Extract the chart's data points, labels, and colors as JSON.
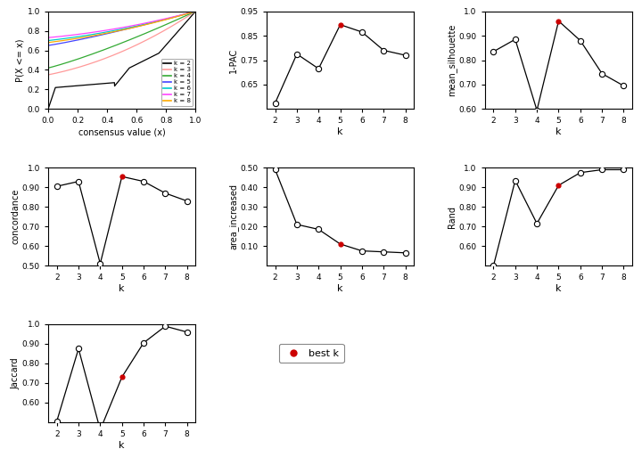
{
  "k_values": [
    2,
    3,
    4,
    5,
    6,
    7,
    8
  ],
  "best_k": 5,
  "best_k_idx": 3,
  "pac_1minus": [
    0.575,
    0.775,
    0.715,
    0.895,
    0.865,
    0.79,
    0.77
  ],
  "pac_ylim": [
    0.55,
    0.95
  ],
  "pac_yticks": [
    0.65,
    0.75,
    0.85,
    0.95
  ],
  "mean_silhouette": [
    0.835,
    0.885,
    0.595,
    0.96,
    0.88,
    0.745,
    0.695
  ],
  "silh_ylim": [
    0.6,
    1.0
  ],
  "silh_yticks": [
    0.6,
    0.7,
    0.8,
    0.9,
    1.0
  ],
  "concordance": [
    0.905,
    0.93,
    0.51,
    0.955,
    0.93,
    0.87,
    0.83
  ],
  "conc_ylim": [
    0.5,
    1.0
  ],
  "conc_yticks": [
    0.5,
    0.6,
    0.7,
    0.8,
    0.9,
    1.0
  ],
  "area_increased": [
    0.49,
    0.21,
    0.185,
    0.11,
    0.075,
    0.07,
    0.065
  ],
  "area_ylim": [
    0.0,
    0.5
  ],
  "area_yticks": [
    0.1,
    0.2,
    0.3,
    0.4,
    0.5
  ],
  "rand": [
    0.5,
    0.935,
    0.715,
    0.91,
    0.975,
    0.99,
    0.99
  ],
  "rand_ylim": [
    0.5,
    1.0
  ],
  "rand_yticks": [
    0.6,
    0.7,
    0.8,
    0.9,
    1.0
  ],
  "jaccard": [
    0.505,
    0.875,
    0.46,
    0.73,
    0.905,
    0.99,
    0.96
  ],
  "jacc_ylim": [
    0.5,
    1.0
  ],
  "jacc_yticks": [
    0.6,
    0.7,
    0.8,
    0.9,
    1.0
  ],
  "ecdf_colors": [
    "#000000",
    "#ff9999",
    "#33aa33",
    "#4444ff",
    "#00cccc",
    "#ff44ff",
    "#ffaa00"
  ],
  "ecdf_labels": [
    "k = 2",
    "k = 3",
    "k = 4",
    "k = 5",
    "k = 6",
    "k = 7",
    "k = 8"
  ],
  "best_k_color": "#cc0000",
  "line_color": "black",
  "open_circle_facecolor": "white"
}
